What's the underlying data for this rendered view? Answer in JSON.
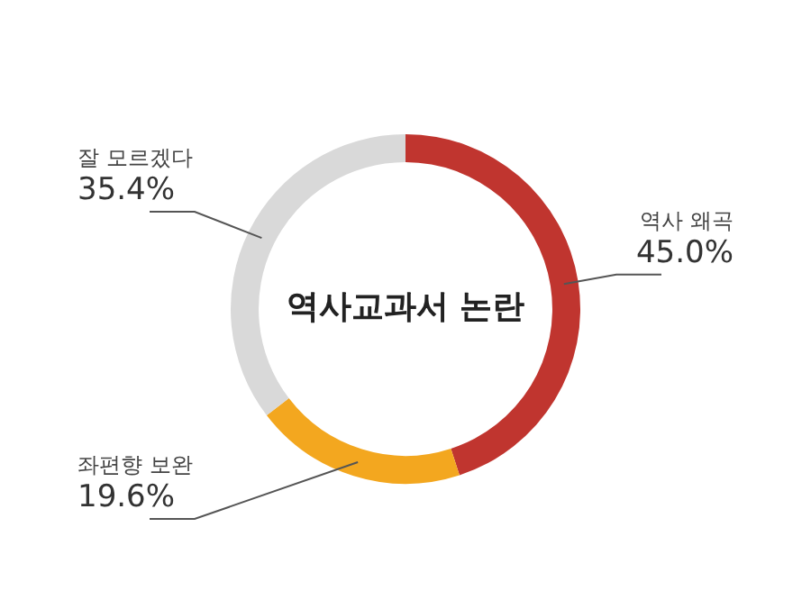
{
  "chart_data": {
    "type": "donut",
    "title": "역사교과서 논란",
    "categories": [
      "역사 왜곡",
      "좌편향 보완",
      "잘 모르겠다"
    ],
    "values": [
      45.0,
      19.6,
      35.4
    ],
    "value_labels": [
      "45.0%",
      "19.6%",
      "35.4%"
    ],
    "colors": [
      "#c0352f",
      "#f3a71f",
      "#d9d9d9"
    ],
    "legend": false
  }
}
